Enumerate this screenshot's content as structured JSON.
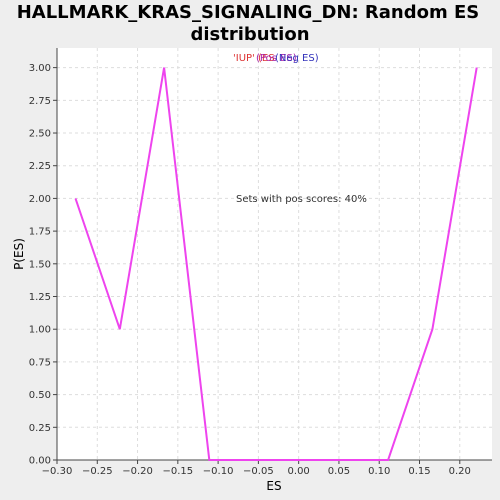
{
  "colors": {
    "plot_bg": "#ffffff",
    "page_bg": "#eeeeee",
    "grid": "#dddddd",
    "line": "#ee44ee",
    "legend_up": "#dd3333",
    "legend_pos": "#aa22aa",
    "legend_neg": "#3333bb"
  },
  "chart_data": {
    "type": "line",
    "title_line1": "HALLMARK_KRAS_SIGNALING_DN: Random ES",
    "title_line2": "distribution",
    "xlabel": "ES",
    "ylabel": "P(ES)",
    "xlim": [
      -0.3,
      0.24
    ],
    "ylim": [
      0,
      3.15
    ],
    "x_ticks": [
      -0.3,
      -0.25,
      -0.2,
      -0.15,
      -0.1,
      -0.05,
      0.0,
      0.05,
      0.1,
      0.15,
      0.2
    ],
    "x_tick_labels": [
      "−0.30",
      "−0.25",
      "−0.20",
      "−0.15",
      "−0.10",
      "−0.05",
      "0.00",
      "0.05",
      "0.10",
      "0.15",
      "0.20"
    ],
    "y_ticks": [
      0,
      0.25,
      0.5,
      0.75,
      1.0,
      1.25,
      1.5,
      1.75,
      2.0,
      2.25,
      2.5,
      2.75,
      3.0
    ],
    "y_tick_labels": [
      "0.00",
      "0.25",
      "0.50",
      "0.75",
      "1.00",
      "1.25",
      "1.50",
      "1.75",
      "2.00",
      "2.25",
      "2.50",
      "2.75",
      "3.00"
    ],
    "grid": true,
    "legend": {
      "placement": "top-center",
      "up_text": "'IUP' (ES",
      "pos_text": "(Pos ES)",
      "neg_text": "(Neg ES)"
    },
    "annotation": "Sets with pos scores: 40%",
    "series": [
      {
        "x": [
          -0.277,
          -0.222,
          -0.167,
          -0.111,
          -0.056,
          0.0,
          0.056,
          0.111,
          0.166,
          0.221
        ],
        "y": [
          2.0,
          1.0,
          3.0,
          0.0,
          0.0,
          0.0,
          0.0,
          0.0,
          1.0,
          3.0
        ]
      }
    ]
  }
}
